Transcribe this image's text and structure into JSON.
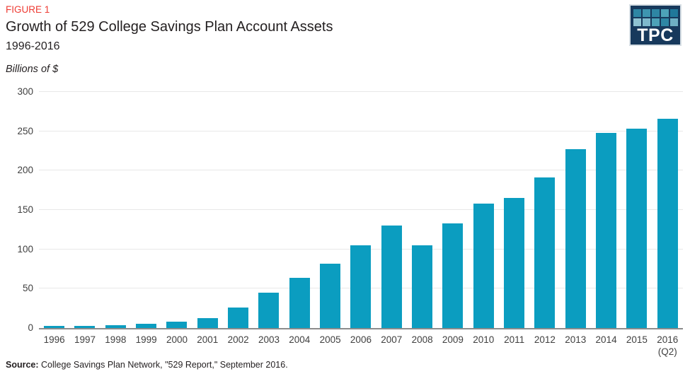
{
  "header": {
    "figure_label": "FIGURE 1",
    "title": "Growth of 529 College Savings Plan Account Assets",
    "subtitle": "1996-2016",
    "units_label": "Billions of $"
  },
  "logo": {
    "text": "TPC",
    "background": "#17395C",
    "border_color": "#D6DEE4",
    "grid_colors": [
      "#2E86A4",
      "#3E95B0",
      "#2E86A4",
      "#4DA2B8",
      "#20789A",
      "#8FC3D2",
      "#7FB9CC",
      "#4DA2B8",
      "#2E86A4",
      "#6FB0C4"
    ]
  },
  "source": {
    "prefix": "Source:",
    "text": " College Savings Plan Network, \"529 Report,\" September 2016."
  },
  "colors": {
    "bar": "#0B9DC0",
    "figure_label": "#EE3B33",
    "axis_line": "#8C8C8C",
    "gridline": "#E8E8E8",
    "text": "#231F20",
    "tick_text": "#404040"
  },
  "chart_data": {
    "type": "bar",
    "title": "Growth of 529 College Savings Plan Account Assets",
    "subtitle": "1996-2016",
    "ylabel": "Billions of $",
    "xlabel": "",
    "categories": [
      "1996",
      "1997",
      "1998",
      "1999",
      "2000",
      "2001",
      "2002",
      "2003",
      "2004",
      "2005",
      "2006",
      "2007",
      "2008",
      "2009",
      "2010",
      "2011",
      "2012",
      "2013",
      "2014",
      "2015",
      "2016"
    ],
    "values": [
      2.5,
      2.5,
      3.5,
      5,
      8.5,
      13,
      26,
      45,
      64,
      82,
      105,
      130,
      105,
      133,
      158,
      165,
      191,
      227,
      248,
      253,
      266
    ],
    "category_note": {
      "index": 20,
      "text": "(Q2)"
    },
    "ylim": [
      0,
      300
    ],
    "yticks": [
      0,
      50,
      100,
      150,
      200,
      250,
      300
    ],
    "grid": true,
    "legend": false,
    "bar_color": "#0B9DC0"
  }
}
